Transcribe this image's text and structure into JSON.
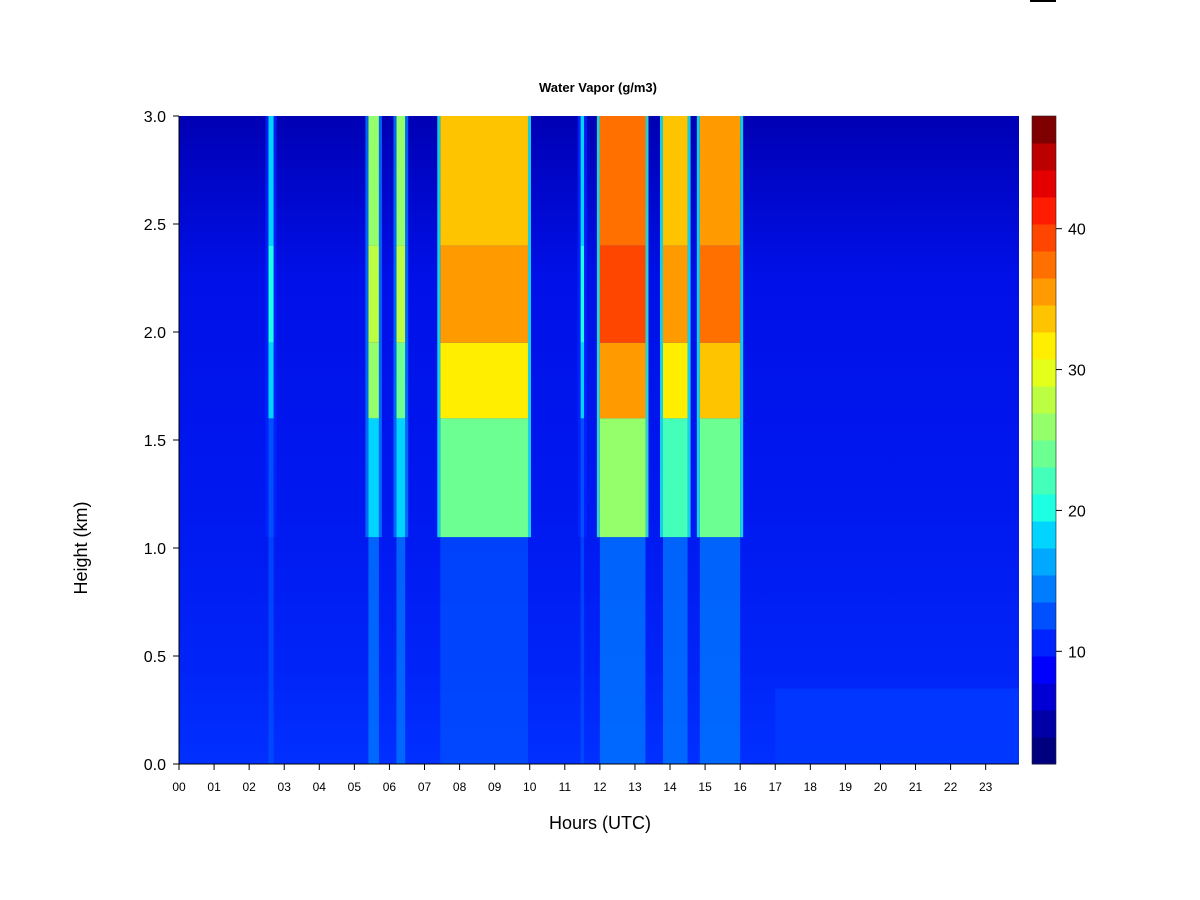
{
  "chart_data": {
    "type": "heatmap",
    "title": "Water Vapor (g/m3)",
    "xlabel": "Hours (UTC)",
    "ylabel": "Height (km)",
    "x_ticks": [
      "00",
      "01",
      "02",
      "03",
      "04",
      "05",
      "06",
      "07",
      "08",
      "09",
      "10",
      "11",
      "12",
      "13",
      "14",
      "15",
      "16",
      "17",
      "18",
      "19",
      "20",
      "21",
      "22",
      "23"
    ],
    "y_ticks": [
      "0.0",
      "0.5",
      "1.0",
      "1.5",
      "2.0",
      "2.5",
      "3.0"
    ],
    "xlim": [
      0,
      23.95
    ],
    "ylim": [
      0,
      3.0
    ],
    "colorbar": {
      "ticks": [
        "10",
        "20",
        "30",
        "40"
      ],
      "tick_values": [
        10,
        20,
        30,
        40
      ],
      "range": [
        2,
        48
      ],
      "levels": [
        "#00007f",
        "#0000a6",
        "#0000d4",
        "#0000ff",
        "#0024ff",
        "#0050ff",
        "#007cff",
        "#00a8ff",
        "#00d4ff",
        "#1cffe2",
        "#44ffba",
        "#6cff92",
        "#94ff6a",
        "#bcff42",
        "#e4ff1a",
        "#ffee00",
        "#ffc400",
        "#ff9a00",
        "#ff7000",
        "#ff4600",
        "#ff1c00",
        "#e40000",
        "#bc0000",
        "#7f0000"
      ]
    },
    "features": [
      {
        "hour_start": 2.55,
        "hour_end": 2.7,
        "value_upper": 20,
        "value_lower": 12
      },
      {
        "hour_start": 5.4,
        "hour_end": 5.7,
        "value_upper": 28,
        "value_lower": 14
      },
      {
        "hour_start": 6.2,
        "hour_end": 6.45,
        "value_upper": 27,
        "value_lower": 14
      },
      {
        "hour_start": 7.45,
        "hour_end": 9.95,
        "value_upper": 36,
        "value_lower": 12
      },
      {
        "hour_start": 11.45,
        "hour_end": 11.55,
        "value_upper": 20,
        "value_lower": 13
      },
      {
        "hour_start": 12.0,
        "hour_end": 13.3,
        "value_upper": 39,
        "value_lower": 14
      },
      {
        "hour_start": 13.8,
        "hour_end": 14.5,
        "value_upper": 35,
        "value_lower": 14
      },
      {
        "hour_start": 14.85,
        "hour_end": 16.0,
        "value_upper": 37,
        "value_lower": 14
      }
    ]
  }
}
